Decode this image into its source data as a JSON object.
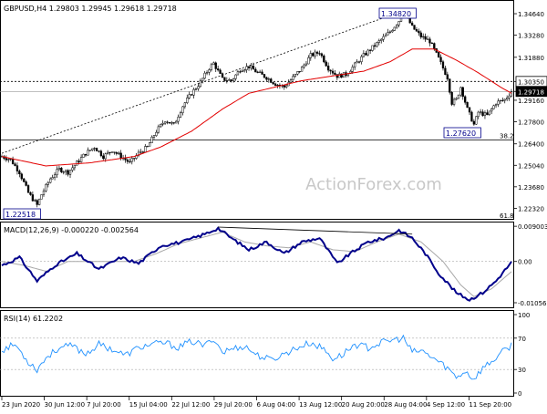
{
  "chart_data": [
    {
      "type": "candlestick",
      "header": "GBPUSD,H4  1.29803 1.29945 1.29618 1.29718",
      "ylim": [
        1.2165,
        1.3545
      ],
      "y_ticks": [
        "1.34640",
        "1.33280",
        "1.31880",
        "1.30350",
        "1.29718",
        "1.29160",
        "1.27800",
        "1.26400",
        "1.25040",
        "1.23680",
        "1.22320"
      ],
      "y_tick_values": [
        1.3464,
        1.3328,
        1.3188,
        1.3035,
        1.29718,
        1.2916,
        1.278,
        1.264,
        1.2504,
        1.2368,
        1.2232
      ],
      "highlight_ticks": {
        "resistance": "1.30350",
        "current": "1.29718"
      },
      "annotations": {
        "high_label": "1.34820",
        "high_value": 1.3482,
        "low_label": "1.27620",
        "low_value": 1.2762,
        "start_low_label": "1.22518",
        "start_low_value": 1.22518,
        "fib_382_label": "38.2",
        "fib_382_value": 1.2665,
        "fib_618_label": "61.8"
      },
      "price_path": [
        [
          0,
          1.256
        ],
        [
          4,
          1.254
        ],
        [
          8,
          1.246
        ],
        [
          12,
          1.233
        ],
        [
          16,
          1.2252
        ],
        [
          18,
          1.232
        ],
        [
          22,
          1.242
        ],
        [
          26,
          1.248
        ],
        [
          30,
          1.246
        ],
        [
          34,
          1.252
        ],
        [
          38,
          1.258
        ],
        [
          42,
          1.262
        ],
        [
          46,
          1.256
        ],
        [
          50,
          1.26
        ],
        [
          54,
          1.256
        ],
        [
          58,
          1.252
        ],
        [
          62,
          1.258
        ],
        [
          66,
          1.262
        ],
        [
          70,
          1.272
        ],
        [
          74,
          1.279
        ],
        [
          78,
          1.276
        ],
        [
          82,
          1.288
        ],
        [
          86,
          1.296
        ],
        [
          90,
          1.303
        ],
        [
          94,
          1.312
        ],
        [
          96,
          1.315
        ],
        [
          100,
          1.305
        ],
        [
          104,
          1.304
        ],
        [
          108,
          1.311
        ],
        [
          112,
          1.313
        ],
        [
          116,
          1.309
        ],
        [
          120,
          1.306
        ],
        [
          124,
          1.302
        ],
        [
          128,
          1.3
        ],
        [
          132,
          1.306
        ],
        [
          136,
          1.312
        ],
        [
          140,
          1.32
        ],
        [
          144,
          1.322
        ],
        [
          148,
          1.312
        ],
        [
          152,
          1.307
        ],
        [
          156,
          1.308
        ],
        [
          160,
          1.314
        ],
        [
          164,
          1.32
        ],
        [
          168,
          1.325
        ],
        [
          172,
          1.33
        ],
        [
          176,
          1.335
        ],
        [
          180,
          1.342
        ],
        [
          182,
          1.3482
        ],
        [
          186,
          1.338
        ],
        [
          190,
          1.332
        ],
        [
          194,
          1.329
        ],
        [
          198,
          1.318
        ],
        [
          202,
          1.306
        ],
        [
          204,
          1.29
        ],
        [
          206,
          1.292
        ],
        [
          208,
          1.3
        ],
        [
          211,
          1.286
        ],
        [
          214,
          1.2762
        ],
        [
          216,
          1.284
        ],
        [
          220,
          1.282
        ],
        [
          224,
          1.29
        ],
        [
          228,
          1.292
        ],
        [
          231,
          1.2972
        ]
      ],
      "ma_path": [
        [
          0,
          1.256
        ],
        [
          20,
          1.25
        ],
        [
          40,
          1.252
        ],
        [
          60,
          1.256
        ],
        [
          72,
          1.262
        ],
        [
          86,
          1.272
        ],
        [
          100,
          1.286
        ],
        [
          112,
          1.296
        ],
        [
          124,
          1.3
        ],
        [
          136,
          1.304
        ],
        [
          150,
          1.307
        ],
        [
          164,
          1.31
        ],
        [
          176,
          1.316
        ],
        [
          186,
          1.324
        ],
        [
          196,
          1.324
        ],
        [
          206,
          1.317
        ],
        [
          216,
          1.309
        ],
        [
          226,
          1.3
        ],
        [
          231,
          1.296
        ]
      ],
      "trend_line": [
        [
          0,
          1.258
        ],
        [
          182,
          1.3482
        ]
      ],
      "x_count": 232
    },
    {
      "type": "line",
      "name": "MACD(12,26,9) -0.000220 -0.002564",
      "ylim": [
        -0.0115,
        0.0095
      ],
      "y_ticks": [
        "0.009003",
        "0.00",
        "-0.010566"
      ],
      "y_tick_values": [
        0.009003,
        0.0,
        -0.010566
      ],
      "main": [
        [
          0,
          -0.001
        ],
        [
          8,
          0.001
        ],
        [
          16,
          -0.005
        ],
        [
          24,
          -0.001
        ],
        [
          34,
          0.002
        ],
        [
          44,
          -0.002
        ],
        [
          54,
          0.001
        ],
        [
          62,
          -0.0005
        ],
        [
          72,
          0.004
        ],
        [
          82,
          0.005
        ],
        [
          92,
          0.007
        ],
        [
          98,
          0.0085
        ],
        [
          104,
          0.006
        ],
        [
          112,
          0.003
        ],
        [
          120,
          0.005
        ],
        [
          128,
          0.002
        ],
        [
          136,
          0.005
        ],
        [
          144,
          0.006
        ],
        [
          152,
          -0.0005
        ],
        [
          158,
          0.002
        ],
        [
          166,
          0.005
        ],
        [
          174,
          0.006
        ],
        [
          180,
          0.008
        ],
        [
          186,
          0.006
        ],
        [
          192,
          0.002
        ],
        [
          198,
          -0.003
        ],
        [
          206,
          -0.008
        ],
        [
          212,
          -0.0098
        ],
        [
          218,
          -0.008
        ],
        [
          224,
          -0.005
        ],
        [
          231,
          -0.0002
        ]
      ],
      "signal": [
        [
          0,
          0.0
        ],
        [
          10,
          -0.001
        ],
        [
          20,
          -0.0025
        ],
        [
          30,
          0.0
        ],
        [
          40,
          0.0
        ],
        [
          50,
          0.0
        ],
        [
          60,
          0.0
        ],
        [
          70,
          0.002
        ],
        [
          80,
          0.0045
        ],
        [
          90,
          0.006
        ],
        [
          100,
          0.0075
        ],
        [
          110,
          0.005
        ],
        [
          120,
          0.004
        ],
        [
          130,
          0.0035
        ],
        [
          140,
          0.005
        ],
        [
          150,
          0.003
        ],
        [
          160,
          0.0025
        ],
        [
          170,
          0.005
        ],
        [
          180,
          0.007
        ],
        [
          190,
          0.005
        ],
        [
          200,
          0.0
        ],
        [
          208,
          -0.006
        ],
        [
          214,
          -0.009
        ],
        [
          222,
          -0.007
        ],
        [
          231,
          -0.0026
        ]
      ],
      "divergence_line": [
        [
          98,
          0.0088
        ],
        [
          186,
          0.007
        ]
      ]
    },
    {
      "type": "line",
      "name": "RSI(14) 61.2202",
      "ylim": [
        0,
        100
      ],
      "y_ticks": [
        "100",
        "70",
        "30",
        "0"
      ],
      "y_tick_values": [
        100,
        70,
        30,
        0
      ],
      "rsi": [
        [
          0,
          55
        ],
        [
          6,
          62
        ],
        [
          12,
          40
        ],
        [
          16,
          30
        ],
        [
          20,
          45
        ],
        [
          26,
          58
        ],
        [
          32,
          60
        ],
        [
          38,
          50
        ],
        [
          44,
          62
        ],
        [
          50,
          56
        ],
        [
          56,
          48
        ],
        [
          62,
          58
        ],
        [
          68,
          62
        ],
        [
          74,
          64
        ],
        [
          80,
          58
        ],
        [
          86,
          66
        ],
        [
          92,
          60
        ],
        [
          96,
          70
        ],
        [
          100,
          52
        ],
        [
          104,
          56
        ],
        [
          110,
          60
        ],
        [
          116,
          48
        ],
        [
          122,
          42
        ],
        [
          128,
          50
        ],
        [
          134,
          58
        ],
        [
          140,
          64
        ],
        [
          146,
          56
        ],
        [
          150,
          44
        ],
        [
          154,
          48
        ],
        [
          160,
          62
        ],
        [
          166,
          58
        ],
        [
          172,
          64
        ],
        [
          178,
          68
        ],
        [
          182,
          70
        ],
        [
          186,
          52
        ],
        [
          190,
          54
        ],
        [
          196,
          44
        ],
        [
          202,
          32
        ],
        [
          206,
          20
        ],
        [
          210,
          28
        ],
        [
          214,
          18
        ],
        [
          218,
          32
        ],
        [
          222,
          40
        ],
        [
          226,
          50
        ],
        [
          231,
          61
        ]
      ]
    }
  ],
  "x_labels": [
    "23 Jun 2020",
    "30 Jun 12:00",
    "7 Jul 20:00",
    "15 Jul 04:00",
    "22 Jul 12:00",
    "29 Jul 20:00",
    "6 Aug 04:00",
    "13 Aug 12:00",
    "20 Aug 20:00",
    "28 Aug 04:00",
    "4 Sep 12:00",
    "11 Sep 20:00"
  ],
  "watermark": "ActionForex.com",
  "colors": {
    "price": "#000000",
    "ma": "#e30000",
    "macd_main": "#00008b",
    "macd_signal": "#a8a8a8",
    "rsi": "#1e90ff",
    "label_box": "#00008b",
    "current_tag": "#000000"
  }
}
